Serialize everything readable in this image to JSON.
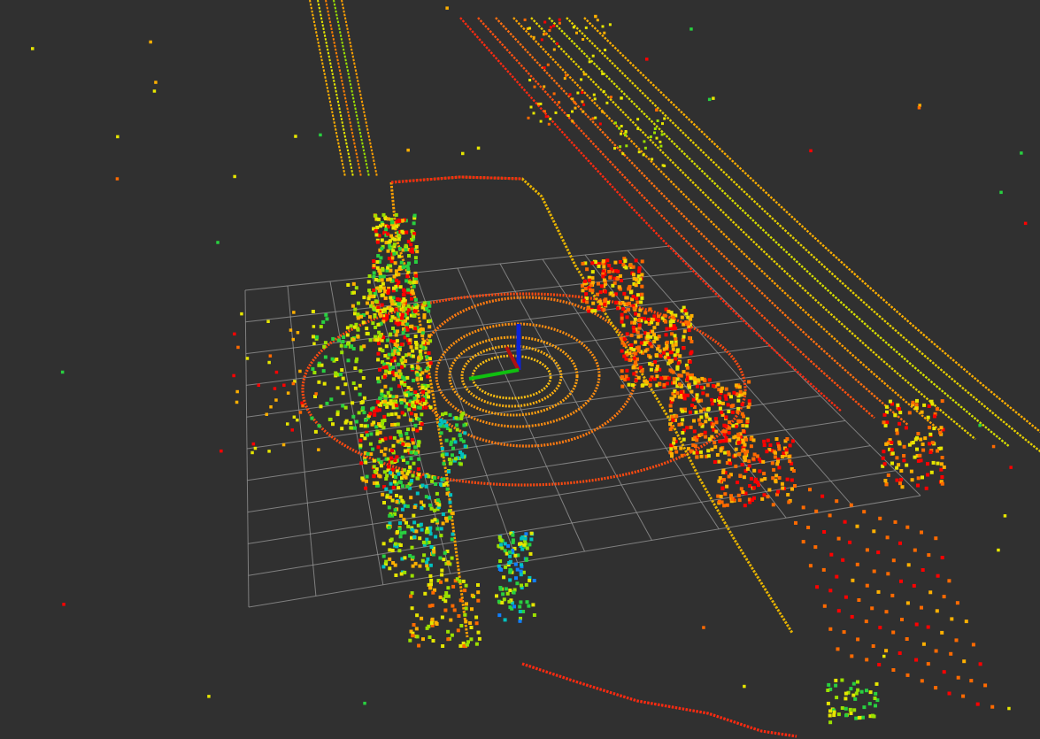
{
  "viewport": {
    "background_color": "#303030",
    "grid_color": "#9a9a9a"
  },
  "frame_axes": {
    "x_axis_color": "#b01010",
    "y_axis_color": "#10c010",
    "z_axis_color": "#0a22d8"
  },
  "point_cloud": {
    "color_scale": [
      "#ff0000",
      "#ff6a00",
      "#ffb000",
      "#e6e600",
      "#9be000",
      "#28d040",
      "#00c0c0",
      "#1080ff"
    ]
  }
}
